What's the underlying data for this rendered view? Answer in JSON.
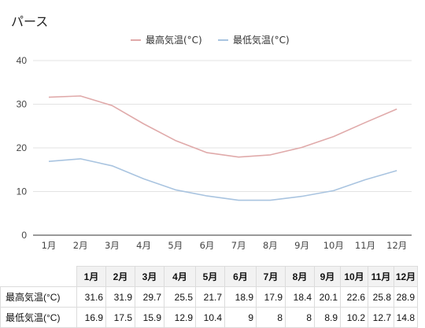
{
  "chart_data": {
    "type": "line",
    "title": "パース",
    "categories": [
      "1月",
      "2月",
      "3月",
      "4月",
      "5月",
      "6月",
      "7月",
      "8月",
      "9月",
      "10月",
      "11月",
      "12月"
    ],
    "series": [
      {
        "name": "最高気温(°C)",
        "color": "#e0aaaa",
        "values": [
          31.6,
          31.9,
          29.7,
          25.5,
          21.7,
          18.9,
          17.9,
          18.4,
          20.1,
          22.6,
          25.8,
          28.9
        ]
      },
      {
        "name": "最低気温(°C)",
        "color": "#a9c4e0",
        "values": [
          16.9,
          17.5,
          15.9,
          12.9,
          10.4,
          9,
          8,
          8,
          8.9,
          10.2,
          12.7,
          14.8
        ]
      }
    ],
    "ylim": [
      0,
      40
    ],
    "yticks": [
      0,
      10,
      20,
      30,
      40
    ],
    "grid": true,
    "legend_position": "top-center"
  },
  "table": {
    "headers": [
      "1月",
      "2月",
      "3月",
      "4月",
      "5月",
      "6月",
      "7月",
      "8月",
      "9月",
      "10月",
      "11月",
      "12月"
    ],
    "rows": [
      {
        "label": "最高気温(°C)",
        "values": [
          "31.6",
          "31.9",
          "29.7",
          "25.5",
          "21.7",
          "18.9",
          "17.9",
          "18.4",
          "20.1",
          "22.6",
          "25.8",
          "28.9"
        ]
      },
      {
        "label": "最低気温(°C)",
        "values": [
          "16.9",
          "17.5",
          "15.9",
          "12.9",
          "10.4",
          "9",
          "8",
          "8",
          "8.9",
          "10.2",
          "12.7",
          "14.8"
        ]
      }
    ]
  }
}
